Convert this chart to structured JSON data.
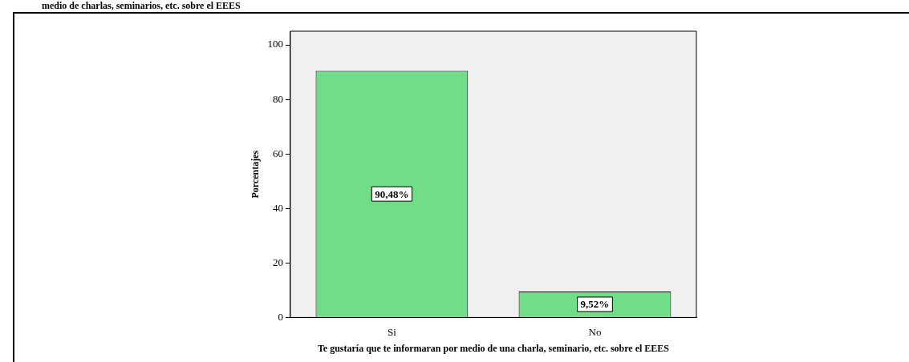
{
  "chart_data": {
    "type": "bar",
    "title": "medio de charlas, seminarios, etc. sobre el EEES",
    "xlabel": "Te gustaría que te informaran por medio de una charla, seminario, etc. sobre el EEES",
    "ylabel": "Porcentajes",
    "categories": [
      "Si",
      "No"
    ],
    "values": [
      90.48,
      9.52
    ],
    "color": "#72dd88",
    "value_labels": [
      "90,48%",
      "9,52%"
    ],
    "ylim": [
      0,
      105
    ],
    "yticks": [
      0,
      20,
      40,
      60,
      80,
      100
    ],
    "grid": false,
    "legend": false
  }
}
